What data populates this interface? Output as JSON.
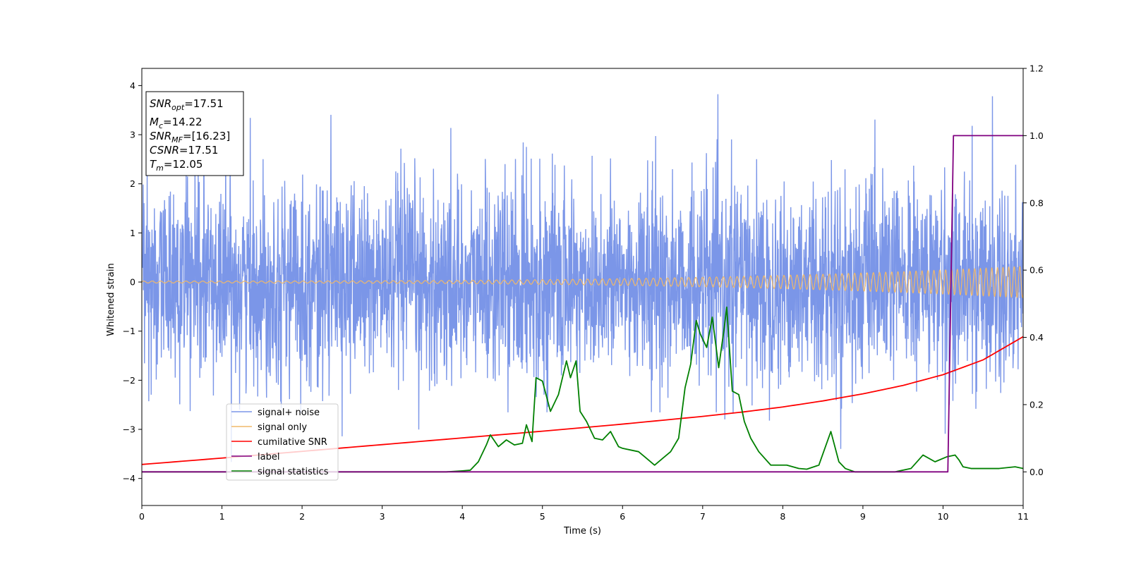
{
  "chart_data": {
    "type": "line",
    "xlabel": "Time (s)",
    "ylabel": "Whitened strain",
    "xlim": [
      0,
      11
    ],
    "ylim": [
      -4.55,
      4.35
    ],
    "y2lim": [
      -0.1,
      1.2
    ],
    "xticks": [
      "0",
      "1",
      "2",
      "3",
      "4",
      "5",
      "6",
      "7",
      "8",
      "9",
      "10",
      "11"
    ],
    "yticks": [
      "−4",
      "−3",
      "−2",
      "−1",
      "0",
      "1",
      "2",
      "3",
      "4"
    ],
    "y2ticks": [
      "0.0",
      "0.2",
      "0.4",
      "0.6",
      "0.8",
      "1.0",
      "1.2"
    ],
    "legend": {
      "placement": "lower-left",
      "entries": [
        "signal+ noise",
        "signal only",
        "cumilative SNR",
        "label",
        "signal statistics"
      ]
    },
    "annotation": {
      "snr_opt": "17.51",
      "mc": "14.22",
      "snr_mf": "[16.23]",
      "csnr": "17.51",
      "tm": "12.05"
    },
    "series": [
      {
        "name": "signal+ noise",
        "color": "#7b96e8",
        "axis": "left",
        "description_stats": {
          "min": -4.15,
          "max": 3.95,
          "std": 1.0,
          "time_range": [
            0,
            11
          ]
        }
      },
      {
        "name": "signal only",
        "color": "#f0b86a",
        "axis": "left",
        "amplitude_start": 0.02,
        "amplitude_end": 0.32,
        "time_range": [
          0,
          11
        ]
      },
      {
        "name": "cumilative SNR",
        "color": "#ff0000",
        "axis": "right",
        "x": [
          0,
          1,
          2,
          3,
          4,
          5,
          6,
          7,
          7.5,
          8,
          8.5,
          9,
          9.5,
          10,
          10.5,
          11
        ],
        "values": [
          0.022,
          0.041,
          0.061,
          0.081,
          0.101,
          0.121,
          0.142,
          0.165,
          0.178,
          0.193,
          0.211,
          0.232,
          0.257,
          0.289,
          0.333,
          0.402
        ]
      },
      {
        "name": "label",
        "color": "#800080",
        "axis": "right",
        "x": [
          0,
          10.06,
          10.13,
          11
        ],
        "values": [
          0.0,
          0.0,
          1.0,
          1.0
        ]
      },
      {
        "name": "signal statistics",
        "color": "#008000",
        "axis": "right",
        "x": [
          0,
          0.5,
          1,
          1.5,
          2,
          2.5,
          3,
          3.5,
          3.8,
          4.0,
          4.1,
          4.2,
          4.3,
          4.35,
          4.45,
          4.55,
          4.65,
          4.75,
          4.8,
          4.87,
          4.92,
          5.0,
          5.1,
          5.2,
          5.3,
          5.35,
          5.42,
          5.47,
          5.55,
          5.65,
          5.75,
          5.85,
          5.95,
          6.0,
          6.1,
          6.2,
          6.3,
          6.4,
          6.5,
          6.6,
          6.7,
          6.78,
          6.85,
          6.92,
          6.97,
          7.05,
          7.12,
          7.2,
          7.27,
          7.3,
          7.37,
          7.45,
          7.52,
          7.6,
          7.7,
          7.85,
          7.95,
          8.05,
          8.2,
          8.3,
          8.45,
          8.6,
          8.7,
          8.78,
          8.9,
          9.1,
          9.4,
          9.6,
          9.75,
          9.9,
          10.05,
          10.15,
          10.2,
          10.25,
          10.35,
          10.5,
          10.7,
          10.9,
          11.0
        ],
        "values": [
          0.0,
          0.0,
          0.0,
          0.0,
          0.0,
          0.0,
          0.0,
          0.0,
          0.0,
          0.003,
          0.005,
          0.03,
          0.08,
          0.11,
          0.075,
          0.095,
          0.08,
          0.085,
          0.14,
          0.09,
          0.28,
          0.27,
          0.18,
          0.23,
          0.33,
          0.28,
          0.33,
          0.18,
          0.15,
          0.1,
          0.095,
          0.12,
          0.075,
          0.07,
          0.065,
          0.06,
          0.04,
          0.02,
          0.04,
          0.06,
          0.1,
          0.25,
          0.32,
          0.45,
          0.41,
          0.37,
          0.46,
          0.31,
          0.43,
          0.49,
          0.24,
          0.23,
          0.15,
          0.1,
          0.06,
          0.02,
          0.02,
          0.02,
          0.01,
          0.008,
          0.02,
          0.12,
          0.03,
          0.01,
          0.0,
          0.0,
          0.0,
          0.01,
          0.05,
          0.03,
          0.045,
          0.05,
          0.035,
          0.015,
          0.01,
          0.01,
          0.01,
          0.015,
          0.01
        ]
      }
    ]
  },
  "colors": {
    "noise": "#7b96e8",
    "signal": "#f0b86a",
    "csnr": "#ff0000",
    "label": "#800080",
    "stats": "#008000"
  }
}
